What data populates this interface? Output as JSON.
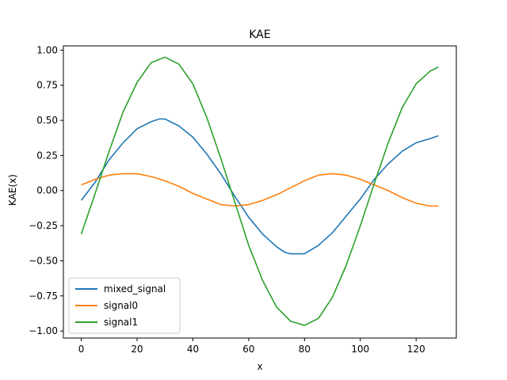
{
  "chart_data": {
    "type": "line",
    "title": "KAE",
    "xlabel": "x",
    "ylabel": "KAE(x)",
    "xlim": [
      -6.4,
      134.4
    ],
    "ylim": [
      -1.05,
      1.03
    ],
    "xticks": [
      0,
      20,
      40,
      60,
      80,
      100,
      120
    ],
    "yticks": [
      -1.0,
      -0.75,
      -0.5,
      -0.25,
      0.0,
      0.25,
      0.5,
      0.75,
      1.0
    ],
    "ytick_labels": [
      "−1.00",
      "−0.75",
      "−0.50",
      "−0.25",
      "0.00",
      "0.25",
      "0.50",
      "0.75",
      "1.00"
    ],
    "legend_position": "lower-left",
    "grid": false,
    "series": [
      {
        "name": "mixed_signal",
        "color": "#1f77b4",
        "points": [
          [
            0,
            -0.07
          ],
          [
            5,
            0.06
          ],
          [
            10,
            0.22
          ],
          [
            15,
            0.34
          ],
          [
            20,
            0.44
          ],
          [
            25,
            0.49
          ],
          [
            28,
            0.51
          ],
          [
            30,
            0.51
          ],
          [
            35,
            0.46
          ],
          [
            40,
            0.38
          ],
          [
            45,
            0.26
          ],
          [
            50,
            0.12
          ],
          [
            55,
            -0.04
          ],
          [
            60,
            -0.19
          ],
          [
            65,
            -0.31
          ],
          [
            70,
            -0.4
          ],
          [
            73,
            -0.44
          ],
          [
            75,
            -0.45
          ],
          [
            80,
            -0.45
          ],
          [
            85,
            -0.39
          ],
          [
            90,
            -0.3
          ],
          [
            95,
            -0.18
          ],
          [
            100,
            -0.06
          ],
          [
            105,
            0.08
          ],
          [
            110,
            0.19
          ],
          [
            115,
            0.28
          ],
          [
            120,
            0.34
          ],
          [
            125,
            0.37
          ],
          [
            128,
            0.39
          ]
        ]
      },
      {
        "name": "signal0",
        "color": "#ff7f0e",
        "points": [
          [
            0,
            0.04
          ],
          [
            5,
            0.08
          ],
          [
            10,
            0.11
          ],
          [
            15,
            0.12
          ],
          [
            20,
            0.12
          ],
          [
            25,
            0.1
          ],
          [
            30,
            0.07
          ],
          [
            35,
            0.03
          ],
          [
            40,
            -0.02
          ],
          [
            45,
            -0.06
          ],
          [
            50,
            -0.1
          ],
          [
            55,
            -0.11
          ],
          [
            60,
            -0.1
          ],
          [
            65,
            -0.07
          ],
          [
            70,
            -0.03
          ],
          [
            75,
            0.02
          ],
          [
            80,
            0.07
          ],
          [
            85,
            0.11
          ],
          [
            90,
            0.12
          ],
          [
            95,
            0.11
          ],
          [
            100,
            0.08
          ],
          [
            105,
            0.04
          ],
          [
            110,
            0.0
          ],
          [
            115,
            -0.05
          ],
          [
            120,
            -0.09
          ],
          [
            125,
            -0.11
          ],
          [
            128,
            -0.11
          ]
        ]
      },
      {
        "name": "signal1",
        "color": "#2ca02c",
        "points": [
          [
            0,
            -0.31
          ],
          [
            5,
            -0.02
          ],
          [
            10,
            0.28
          ],
          [
            15,
            0.56
          ],
          [
            20,
            0.77
          ],
          [
            25,
            0.91
          ],
          [
            30,
            0.95
          ],
          [
            35,
            0.9
          ],
          [
            40,
            0.76
          ],
          [
            45,
            0.52
          ],
          [
            50,
            0.23
          ],
          [
            55,
            -0.08
          ],
          [
            60,
            -0.39
          ],
          [
            65,
            -0.64
          ],
          [
            70,
            -0.83
          ],
          [
            75,
            -0.93
          ],
          [
            80,
            -0.96
          ],
          [
            85,
            -0.91
          ],
          [
            90,
            -0.76
          ],
          [
            95,
            -0.53
          ],
          [
            100,
            -0.25
          ],
          [
            105,
            0.05
          ],
          [
            110,
            0.34
          ],
          [
            115,
            0.59
          ],
          [
            120,
            0.76
          ],
          [
            125,
            0.85
          ],
          [
            128,
            0.88
          ]
        ]
      }
    ]
  }
}
